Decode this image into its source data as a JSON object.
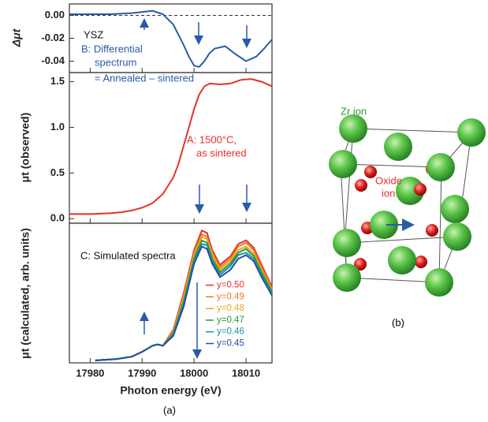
{
  "chart_data": [
    {
      "type": "line",
      "ylabel": "Δμt",
      "x": [
        17976,
        17980,
        17984,
        17988,
        17990,
        17992,
        17994,
        17996,
        17998,
        17999,
        18000,
        18001,
        18002,
        18003,
        18004,
        18006,
        18008,
        18010,
        18012,
        18013.5,
        18015
      ],
      "values": [
        0.001,
        0.001,
        0.001,
        0.002,
        0.003,
        0.004,
        0.001,
        -0.008,
        -0.026,
        -0.036,
        -0.044,
        -0.045,
        -0.04,
        -0.033,
        -0.029,
        -0.027,
        -0.034,
        -0.04,
        -0.036,
        -0.029,
        -0.021
      ],
      "color": "#2a5aa8",
      "xlim": [
        17976,
        18015
      ],
      "ylim": [
        -0.05,
        0.01
      ],
      "yticks": [
        {
          "value": 0,
          "label": "0.00"
        },
        -0.02,
        -0.04
      ],
      "zero_line": true,
      "annotations": [
        "YSZ",
        "B: Differential",
        "spectrum",
        "= Annealed – sintered"
      ],
      "annotation_colors": [
        "#111111",
        "#2a5aa8",
        "#2a5aa8",
        "#2a5aa8"
      ]
    },
    {
      "type": "line",
      "ylabel": "μt (observed)",
      "x": [
        17976,
        17980,
        17984,
        17986,
        17988,
        17990,
        17992,
        17994,
        17996,
        17997,
        17998,
        17999,
        18000,
        18001,
        18002,
        18003,
        18005,
        18007,
        18009,
        18011,
        18013,
        18015
      ],
      "values": [
        0.05,
        0.05,
        0.06,
        0.07,
        0.09,
        0.12,
        0.17,
        0.27,
        0.45,
        0.6,
        0.8,
        1.0,
        1.2,
        1.36,
        1.45,
        1.48,
        1.47,
        1.48,
        1.52,
        1.53,
        1.5,
        1.45
      ],
      "color": "#e8302a",
      "xlim": [
        17976,
        18015
      ],
      "ylim": [
        -0.05,
        1.6
      ],
      "yticks": [
        {
          "value": 0,
          "label": "0.0"
        },
        0.5,
        {
          "value": 1,
          "label": "1.0"
        },
        1.5
      ],
      "annotations": [
        "A: 1500°C,",
        "as sintered"
      ],
      "annotation_colors": [
        "#e8302a",
        "#e8302a"
      ]
    },
    {
      "type": "line",
      "ylabel": "μt (calculated, arb. units)",
      "xlabel": "Photon energy (eV)",
      "x": [
        17981,
        17985,
        17988,
        17990,
        17992,
        17993,
        17994,
        17996,
        17998,
        18000,
        18001.5,
        18002.5,
        18003.5,
        18005,
        18007,
        18008.5,
        18010,
        18011.5,
        18013,
        18015
      ],
      "series": [
        {
          "name": "y=0.50",
          "color": "#e03030",
          "values": [
            0.0,
            0.01,
            0.03,
            0.07,
            0.12,
            0.13,
            0.12,
            0.25,
            0.55,
            0.9,
            1.06,
            1.04,
            0.9,
            0.78,
            0.85,
            0.95,
            0.98,
            0.92,
            0.78,
            0.6
          ]
        },
        {
          "name": "y=0.49",
          "color": "#f07820",
          "values": [
            0.0,
            0.01,
            0.03,
            0.07,
            0.12,
            0.13,
            0.12,
            0.24,
            0.53,
            0.88,
            1.03,
            1.01,
            0.88,
            0.76,
            0.83,
            0.93,
            0.96,
            0.9,
            0.76,
            0.59
          ]
        },
        {
          "name": "y=0.48",
          "color": "#e8a818",
          "values": [
            0.0,
            0.01,
            0.03,
            0.07,
            0.12,
            0.13,
            0.12,
            0.23,
            0.51,
            0.86,
            1.01,
            0.99,
            0.86,
            0.74,
            0.81,
            0.9,
            0.93,
            0.87,
            0.74,
            0.57
          ]
        },
        {
          "name": "y=0.47",
          "color": "#2a9a3a",
          "values": [
            0.0,
            0.01,
            0.03,
            0.07,
            0.12,
            0.13,
            0.12,
            0.22,
            0.48,
            0.83,
            0.98,
            0.96,
            0.83,
            0.72,
            0.79,
            0.88,
            0.91,
            0.85,
            0.72,
            0.56
          ]
        },
        {
          "name": "y=0.46",
          "color": "#2090a8",
          "values": [
            0.0,
            0.01,
            0.03,
            0.07,
            0.12,
            0.13,
            0.12,
            0.21,
            0.46,
            0.81,
            0.95,
            0.94,
            0.81,
            0.7,
            0.77,
            0.86,
            0.88,
            0.83,
            0.7,
            0.54
          ]
        },
        {
          "name": "y=0.45",
          "color": "#2050a0",
          "values": [
            0.0,
            0.01,
            0.03,
            0.07,
            0.12,
            0.13,
            0.12,
            0.2,
            0.44,
            0.79,
            0.93,
            0.91,
            0.79,
            0.68,
            0.74,
            0.83,
            0.86,
            0.81,
            0.68,
            0.53
          ]
        }
      ],
      "xlim": [
        17976,
        18015
      ],
      "ylim": [
        -0.02,
        1.12
      ],
      "xticks": [
        17980,
        17990,
        18000,
        18010
      ],
      "annotations": [
        "C: Simulated spectra"
      ],
      "annotation_colors": [
        "#111111"
      ],
      "legend": "center-right"
    }
  ],
  "panel_labels": [
    "(a)",
    "(b)"
  ],
  "structure": {
    "zr_label": "Zr ion",
    "oxide_label": [
      "Oxide",
      "ion"
    ],
    "zr_color": "#2a9a3a",
    "oxide_color": "#e03030"
  }
}
